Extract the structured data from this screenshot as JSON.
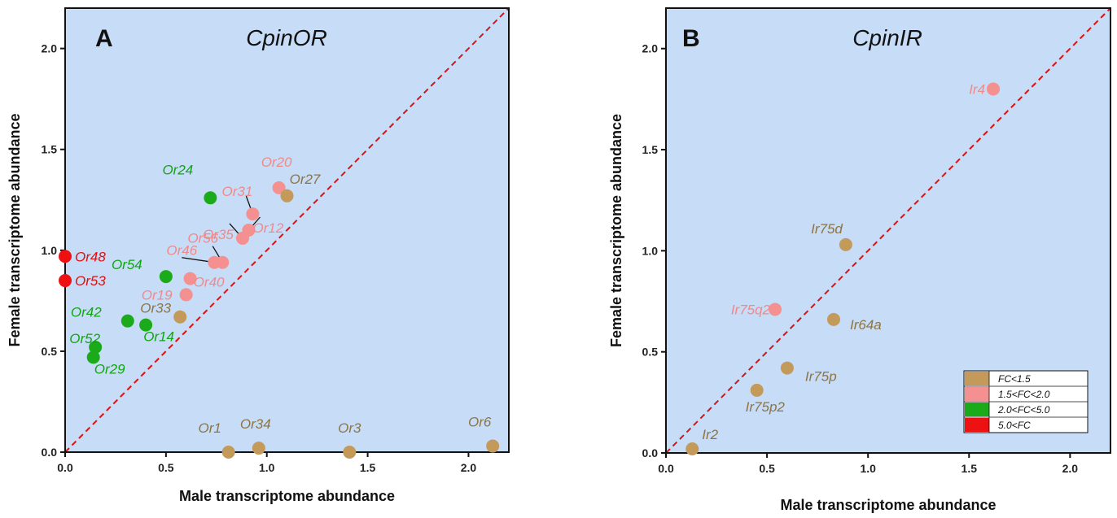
{
  "colors": {
    "FC<1.5": "#c49a5a",
    "1.5<FC<2.0": "#f59090",
    "2.0<FC<5.0": "#1aaa1a",
    "5.0<FC": "#ee1111",
    "plot_bg": "#c6dcf7",
    "diagonal": "#dd1111"
  },
  "label_colors": {
    "FC<1.5": "#8d7443",
    "1.5<FC<2.0": "#f08a8a",
    "2.0<FC<5.0": "#12a512",
    "5.0<FC": "#dd1111"
  },
  "legend": {
    "entries": [
      {
        "label": "FC<1.5",
        "category": "FC<1.5"
      },
      {
        "label": "1.5<FC<2.0",
        "category": "1.5<FC<2.0"
      },
      {
        "label": "2.0<FC<5.0",
        "category": "2.0<FC<5.0"
      },
      {
        "label": "5.0<FC",
        "category": "5.0<FC"
      }
    ]
  },
  "chart_data": [
    {
      "type": "scatter",
      "panel": "A",
      "title": "CpinOR",
      "xlabel": "Male transcriptome abundance",
      "ylabel": "Female transcriptome abundance",
      "xlim": [
        0,
        2.2
      ],
      "ylim": [
        0,
        2.2
      ],
      "xticks": [
        "0.0",
        "0.5",
        "1.0",
        "1.5",
        "2.0"
      ],
      "yticks": [
        "0.0",
        "0.5",
        "1.0",
        "1.5",
        "2.0"
      ],
      "diagonal": "y = x",
      "points": [
        {
          "label": "Or48",
          "x": 0.0,
          "y": 0.97,
          "category": "5.0<FC"
        },
        {
          "label": "Or53",
          "x": 0.0,
          "y": 0.85,
          "category": "5.0<FC"
        },
        {
          "label": "Or24",
          "x": 0.72,
          "y": 1.26,
          "category": "2.0<FC<5.0"
        },
        {
          "label": "Or54",
          "x": 0.5,
          "y": 0.87,
          "category": "2.0<FC<5.0"
        },
        {
          "label": "Or42",
          "x": 0.31,
          "y": 0.65,
          "category": "2.0<FC<5.0"
        },
        {
          "label": "Or14",
          "x": 0.4,
          "y": 0.63,
          "category": "2.0<FC<5.0"
        },
        {
          "label": "Or52",
          "x": 0.15,
          "y": 0.52,
          "category": "2.0<FC<5.0"
        },
        {
          "label": "Or29",
          "x": 0.14,
          "y": 0.47,
          "category": "2.0<FC<5.0"
        },
        {
          "label": "Or20",
          "x": 1.06,
          "y": 1.31,
          "category": "1.5<FC<2.0"
        },
        {
          "label": "Or31",
          "x": 0.93,
          "y": 1.18,
          "category": "1.5<FC<2.0"
        },
        {
          "label": "Or12",
          "x": 0.91,
          "y": 1.1,
          "category": "1.5<FC<2.0"
        },
        {
          "label": "Or35",
          "x": 0.88,
          "y": 1.06,
          "category": "1.5<FC<2.0"
        },
        {
          "label": "Or56",
          "x": 0.78,
          "y": 0.94,
          "category": "1.5<FC<2.0"
        },
        {
          "label": "Or46",
          "x": 0.74,
          "y": 0.94,
          "category": "1.5<FC<2.0"
        },
        {
          "label": "Or40",
          "x": 0.62,
          "y": 0.86,
          "category": "1.5<FC<2.0"
        },
        {
          "label": "Or19",
          "x": 0.6,
          "y": 0.78,
          "category": "1.5<FC<2.0"
        },
        {
          "label": "Or27",
          "x": 1.1,
          "y": 1.27,
          "category": "FC<1.5"
        },
        {
          "label": "Or33",
          "x": 0.57,
          "y": 0.67,
          "category": "FC<1.5"
        },
        {
          "label": "Or1",
          "x": 0.81,
          "y": 0.0,
          "category": "FC<1.5"
        },
        {
          "label": "Or34",
          "x": 0.96,
          "y": 0.02,
          "category": "FC<1.5"
        },
        {
          "label": "Or3",
          "x": 1.41,
          "y": 0.0,
          "category": "FC<1.5"
        },
        {
          "label": "Or6",
          "x": 2.12,
          "y": 0.03,
          "category": "FC<1.5"
        }
      ]
    },
    {
      "type": "scatter",
      "panel": "B",
      "title": "CpinIR",
      "xlabel": "Male transcriptome abundance",
      "ylabel": "Female transcriptome abundance",
      "xlim": [
        0,
        2.2
      ],
      "ylim": [
        0,
        2.2
      ],
      "xticks": [
        "0.0",
        "0.5",
        "1.0",
        "1.5",
        "2.0"
      ],
      "yticks": [
        "0.0",
        "0.5",
        "1.0",
        "1.5",
        "2.0"
      ],
      "diagonal": "y = x",
      "legend_position": "bottom-right",
      "points": [
        {
          "label": "Ir4",
          "x": 1.62,
          "y": 1.8,
          "category": "1.5<FC<2.0"
        },
        {
          "label": "Ir75q2",
          "x": 0.54,
          "y": 0.71,
          "category": "1.5<FC<2.0"
        },
        {
          "label": "Ir75d",
          "x": 0.89,
          "y": 1.03,
          "category": "FC<1.5"
        },
        {
          "label": "Ir64a",
          "x": 0.83,
          "y": 0.66,
          "category": "FC<1.5"
        },
        {
          "label": "Ir75p",
          "x": 0.6,
          "y": 0.42,
          "category": "FC<1.5"
        },
        {
          "label": "Ir75p2",
          "x": 0.45,
          "y": 0.31,
          "category": "FC<1.5"
        },
        {
          "label": "Ir2",
          "x": 0.13,
          "y": 0.02,
          "category": "FC<1.5"
        }
      ]
    }
  ]
}
